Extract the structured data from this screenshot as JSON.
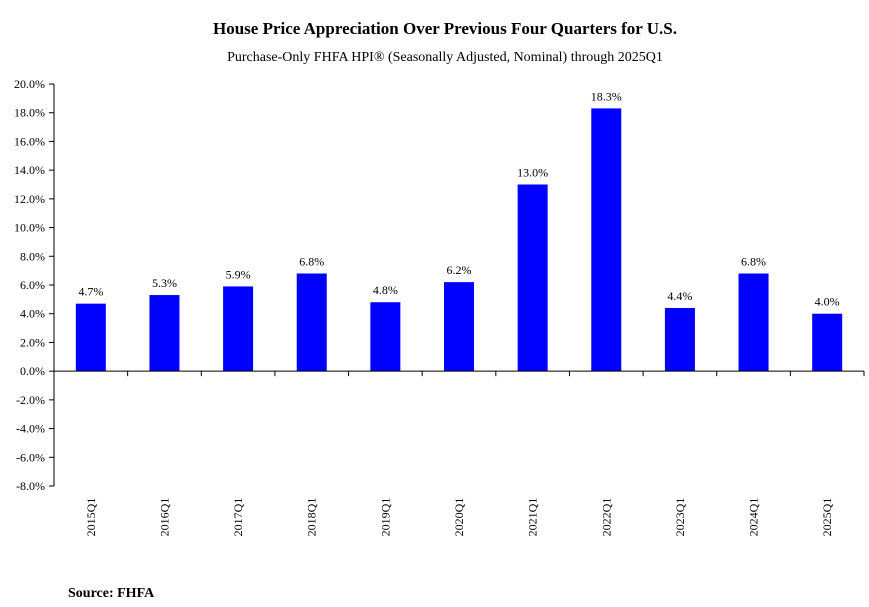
{
  "chart_data": {
    "type": "bar",
    "title": "House Price Appreciation Over Previous Four Quarters for U.S.",
    "subtitle": "Purchase-Only FHFA HPI® (Seasonally Adjusted, Nominal) through 2025Q1",
    "categories": [
      "2015Q1",
      "2016Q1",
      "2017Q1",
      "2018Q1",
      "2019Q1",
      "2020Q1",
      "2021Q1",
      "2022Q1",
      "2023Q1",
      "2024Q1",
      "2025Q1"
    ],
    "values": [
      4.7,
      5.3,
      5.9,
      6.8,
      4.8,
      6.2,
      13.0,
      18.3,
      4.4,
      6.8,
      4.0
    ],
    "data_labels": [
      "4.7%",
      "5.3%",
      "5.9%",
      "6.8%",
      "4.8%",
      "6.2%",
      "13.0%",
      "18.3%",
      "4.4%",
      "6.8%",
      "4.0%"
    ],
    "ylim": [
      -8,
      20
    ],
    "yticks": [
      20,
      18,
      16,
      14,
      12,
      10,
      8,
      6,
      4,
      2,
      0,
      -2,
      -4,
      -6,
      -8
    ],
    "ytick_labels": [
      "20.0%",
      "18.0%",
      "16.0%",
      "14.0%",
      "12.0%",
      "10.0%",
      "8.0%",
      "6.0%",
      "4.0%",
      "2.0%",
      "0.0%",
      "-2.0%",
      "-4.0%",
      "-6.0%",
      "-8.0%"
    ],
    "xlabel": "",
    "ylabel": "",
    "grid": false,
    "bar_color": "#0000FF",
    "source": "Source:  FHFA"
  }
}
